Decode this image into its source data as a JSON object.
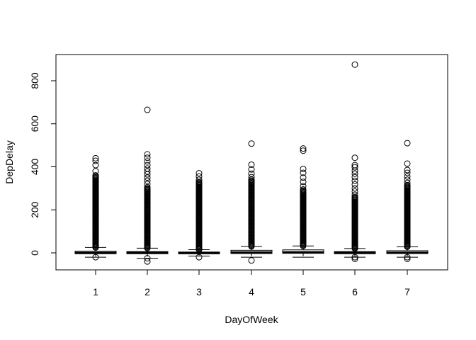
{
  "chart_data": {
    "type": "boxplot",
    "title": "",
    "xlabel": "DayOfWeek",
    "ylabel": "DepDelay",
    "ylim": [
      -75,
      920
    ],
    "y_ticks": [
      0,
      200,
      400,
      600,
      800
    ],
    "categories": [
      "1",
      "2",
      "3",
      "4",
      "5",
      "6",
      "7"
    ],
    "boxes": [
      {
        "category": "1",
        "whisker_low": -20,
        "q1": -4,
        "median": 0,
        "q3": 8,
        "whisker_high": 25,
        "outlier_range": [
          25,
          355
        ],
        "outliers": [
          -20,
          360,
          380,
          408,
          428,
          440
        ]
      },
      {
        "category": "2",
        "whisker_low": -25,
        "q1": -4,
        "median": 0,
        "q3": 6,
        "whisker_high": 22,
        "outlier_range": [
          22,
          300
        ],
        "outliers": [
          -25,
          -40,
          305,
          320,
          335,
          350,
          365,
          378,
          392,
          408,
          425,
          442,
          458,
          665
        ]
      },
      {
        "category": "3",
        "whisker_low": -15,
        "q1": -4,
        "median": -1,
        "q3": 4,
        "whisker_high": 15,
        "outlier_range": [
          15,
          330
        ],
        "outliers": [
          -20,
          340,
          355,
          370
        ]
      },
      {
        "category": "4",
        "whisker_low": -20,
        "q1": -3,
        "median": 2,
        "q3": 12,
        "whisker_high": 30,
        "outlier_range": [
          30,
          335
        ],
        "outliers": [
          -35,
          340,
          352,
          368,
          388,
          410,
          508
        ]
      },
      {
        "category": "5",
        "whisker_low": -20,
        "q1": -2,
        "median": 3,
        "q3": 14,
        "whisker_high": 32,
        "outlier_range": [
          32,
          290
        ],
        "outliers": [
          295,
          310,
          330,
          350,
          372,
          390,
          475,
          485
        ]
      },
      {
        "category": "6",
        "whisker_low": -20,
        "q1": -4,
        "median": 0,
        "q3": 6,
        "whisker_high": 20,
        "outlier_range": [
          20,
          260
        ],
        "outliers": [
          -20,
          -28,
          270,
          285,
          300,
          318,
          335,
          352,
          368,
          382,
          398,
          408,
          442,
          875
        ]
      },
      {
        "category": "7",
        "whisker_low": -20,
        "q1": -3,
        "median": 1,
        "q3": 10,
        "whisker_high": 28,
        "outlier_range": [
          28,
          315
        ],
        "outliers": [
          -20,
          -28,
          325,
          340,
          355,
          372,
          385,
          415,
          510
        ]
      }
    ]
  }
}
